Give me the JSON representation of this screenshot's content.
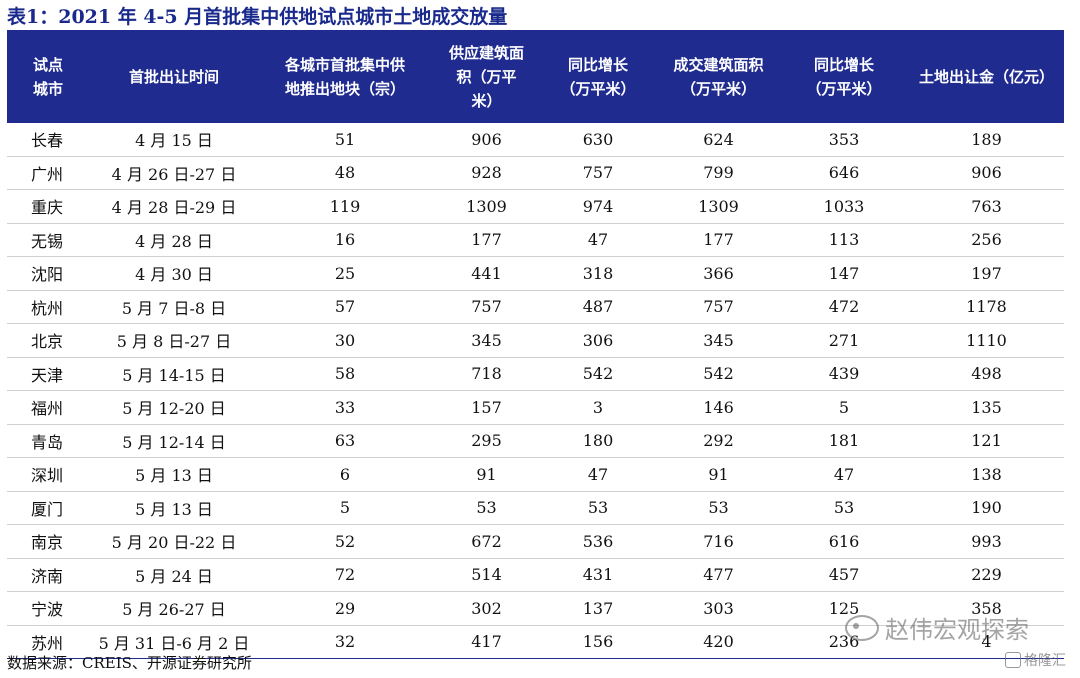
{
  "title": "表1：2021 年 4-5 月首批集中供地试点城市土地成交放量",
  "table": {
    "headers": [
      "试点\n城市",
      "首批出让时间",
      "各城市首批集中供\n地推出地块（宗）",
      "供应建筑面\n积（万平\n米）",
      "同比增长\n（万平米）",
      "成交建筑面积\n（万平米）",
      "同比增长\n（万平米）",
      "土地出让金（亿元）"
    ],
    "rows": [
      [
        "长春",
        "4 月 15 日",
        "51",
        "906",
        "630",
        "624",
        "353",
        "189"
      ],
      [
        "广州",
        "4 月 26 日-27 日",
        "48",
        "928",
        "757",
        "799",
        "646",
        "906"
      ],
      [
        "重庆",
        "4 月 28 日-29 日",
        "119",
        "1309",
        "974",
        "1309",
        "1033",
        "763"
      ],
      [
        "无锡",
        "4 月 28 日",
        "16",
        "177",
        "47",
        "177",
        "113",
        "256"
      ],
      [
        "沈阳",
        "4 月 30 日",
        "25",
        "441",
        "318",
        "366",
        "147",
        "197"
      ],
      [
        "杭州",
        "5 月 7 日-8 日",
        "57",
        "757",
        "487",
        "757",
        "472",
        "1178"
      ],
      [
        "北京",
        "5 月 8 日-27 日",
        "30",
        "345",
        "306",
        "345",
        "271",
        "1110"
      ],
      [
        "天津",
        "5 月 14-15 日",
        "58",
        "718",
        "542",
        "542",
        "439",
        "498"
      ],
      [
        "福州",
        "5 月 12-20 日",
        "33",
        "157",
        "3",
        "146",
        "5",
        "135"
      ],
      [
        "青岛",
        "5 月 12-14 日",
        "63",
        "295",
        "180",
        "292",
        "181",
        "121"
      ],
      [
        "深圳",
        "5 月 13 日",
        "6",
        "91",
        "47",
        "91",
        "47",
        "138"
      ],
      [
        "厦门",
        "5 月 13 日",
        "5",
        "53",
        "53",
        "53",
        "53",
        "190"
      ],
      [
        "南京",
        "5 月 20 日-22 日",
        "52",
        "672",
        "536",
        "716",
        "616",
        "993"
      ],
      [
        "济南",
        "5 月 24 日",
        "72",
        "514",
        "431",
        "477",
        "457",
        "229"
      ],
      [
        "宁波",
        "5 月 26-27 日",
        "29",
        "302",
        "137",
        "303",
        "125",
        "358"
      ],
      [
        "苏州",
        "5 月 31 日-6 月 2 日",
        "32",
        "417",
        "156",
        "420",
        "236",
        "4"
      ]
    ]
  },
  "source": "数据来源：CREIS、开源证券研究所",
  "watermark": {
    "text": "赵伟宏观探索",
    "icon": "wechat-icon",
    "secondary": "格隆汇",
    "secondary_icon": "gelonghui-logo-icon"
  },
  "colors": {
    "header_bg": "#1f2b8f",
    "title": "#1a2a8c"
  }
}
